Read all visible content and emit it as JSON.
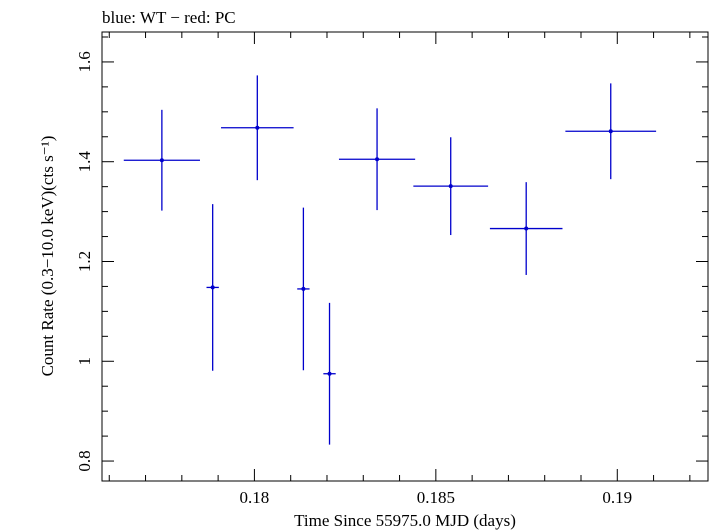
{
  "chart_data": {
    "type": "scatter",
    "title": "blue: WT − red: PC",
    "xlabel": "Time Since 55975.0 MJD (days)",
    "ylabel": "Count Rate (0.3−10.0 keV)(cts s⁻¹)",
    "xlim": [
      0.1758,
      0.1925
    ],
    "ylim": [
      0.76,
      1.66
    ],
    "x_ticks": [
      0.18,
      0.185,
      0.19
    ],
    "x_tick_labels": [
      "0.18",
      "0.185",
      "0.19"
    ],
    "y_ticks": [
      0.8,
      1.0,
      1.2,
      1.4,
      1.6
    ],
    "y_tick_labels": [
      "0.8",
      "1",
      "1.2",
      "1.4",
      "1.6"
    ],
    "grid": false,
    "series": [
      {
        "color": "#0000cc",
        "points": [
          {
            "x": 0.17745,
            "y": 1.403,
            "xerr": 0.00105,
            "yerr": 0.101
          },
          {
            "x": 0.17885,
            "y": 1.148,
            "xerr": 0.00017,
            "yerr": 0.167
          },
          {
            "x": 0.18008,
            "y": 1.468,
            "xerr": 0.001,
            "yerr": 0.105
          },
          {
            "x": 0.18135,
            "y": 1.145,
            "xerr": 0.00017,
            "yerr": 0.163
          },
          {
            "x": 0.18207,
            "y": 0.975,
            "xerr": 0.00017,
            "yerr": 0.142
          },
          {
            "x": 0.18338,
            "y": 1.405,
            "xerr": 0.00105,
            "yerr": 0.102
          },
          {
            "x": 0.18541,
            "y": 1.351,
            "xerr": 0.00103,
            "yerr": 0.098
          },
          {
            "x": 0.18749,
            "y": 1.266,
            "xerr": 0.001,
            "yerr": 0.093
          },
          {
            "x": 0.18982,
            "y": 1.461,
            "xerr": 0.00125,
            "yerr": 0.096
          }
        ]
      }
    ]
  }
}
